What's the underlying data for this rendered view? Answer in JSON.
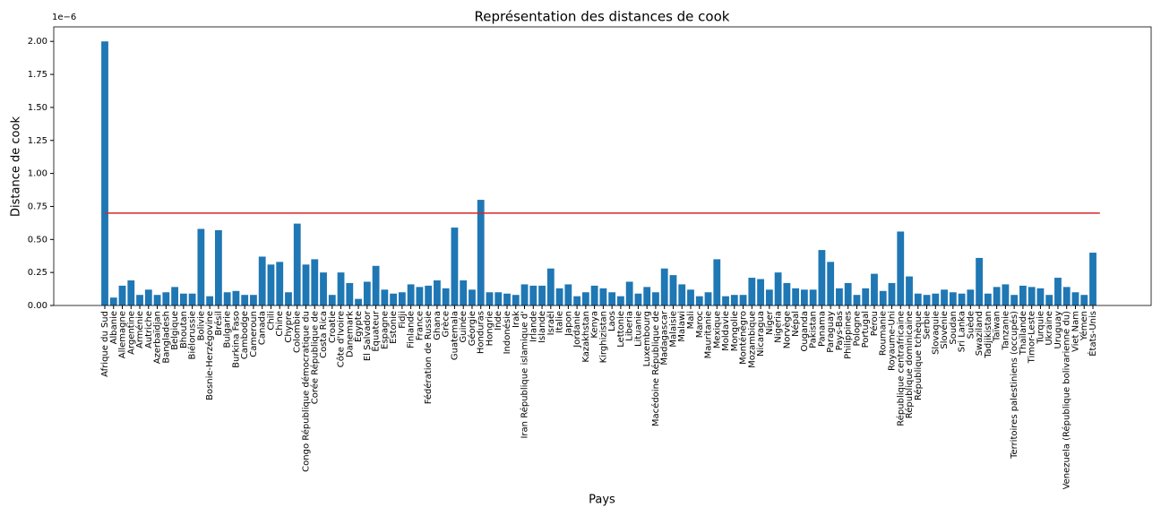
{
  "chart_data": {
    "type": "bar",
    "title": "Représentation des distances de cook",
    "x_label": "Pays",
    "y_label": "Distance de cook",
    "y_offset_label": "1e−6",
    "color": "#1f77b4",
    "threshold": 0.7,
    "threshold_color": "#d62728",
    "categories": [
      "Afrique du Sud",
      "Albanie",
      "Allemagne",
      "Argentine",
      "Arménie",
      "Autriche",
      "Azerbaïdjan",
      "Bangladesh",
      "Belgique",
      "Bhoutan",
      "Biélorussie",
      "Bolivie",
      "Bosnie-Herzégovine",
      "Brésil",
      "Bulgarie",
      "Burkina Faso",
      "Cambodge",
      "Cameroun",
      "Canada",
      "Chili",
      "Chine",
      "Chypre",
      "Colombie",
      "Congo République démocratique du",
      "Corée République de",
      "Costa Rica",
      "Croatie",
      "Côte d'Ivoire",
      "Danemark",
      "Égypte",
      "El Salvador",
      "Équateur",
      "Espagne",
      "Estonie",
      "Fidji",
      "Finlande",
      "France",
      "Fédération de Russie",
      "Ghana",
      "Grèce",
      "Guatemala",
      "Guinée",
      "Géorgie",
      "Honduras",
      "Hongrie",
      "Inde",
      "Indonésie",
      "Irak",
      "Iran République islamique d'",
      "Irlande",
      "Islande",
      "Israël",
      "Italie",
      "Japon",
      "Jordanie",
      "Kazakhstan",
      "Kenya",
      "Kirghizistan",
      "Laos",
      "Lettonie",
      "Liberia",
      "Lituanie",
      "Luxembourg",
      "Macédoine République de",
      "Madagascar",
      "Malaisie",
      "Malawi",
      "Mali",
      "Maroc",
      "Mauritanie",
      "Mexique",
      "Moldavie",
      "Mongolie",
      "Monténégro",
      "Mozambique",
      "Nicaragua",
      "Niger",
      "Nigeria",
      "Norvège",
      "Népal",
      "Ouganda",
      "Pakistan",
      "Panama",
      "Paraguay",
      "Pays-Bas",
      "Philippines",
      "Pologne",
      "Portugal",
      "Pérou",
      "Roumanie",
      "Royaume-Uni",
      "République centrafricaine",
      "République dominicaine",
      "République tchèque",
      "Serbie",
      "Slovaquie",
      "Slovénie",
      "Soudan",
      "Sri Lanka",
      "Suède",
      "Swaziland",
      "Tadjikistan",
      "Taïwan",
      "Tanzanie",
      "Territoires palestiniens (occupés)",
      "Thaïlande",
      "Timor-Leste",
      "Turquie",
      "Ukraine",
      "Uruguay",
      "Venezuela (République bolivarienne du)",
      "Viet Nam",
      "Yémen",
      "États-Unis"
    ],
    "values": [
      2.0,
      0.06,
      0.15,
      0.19,
      0.08,
      0.12,
      0.08,
      0.1,
      0.14,
      0.09,
      0.09,
      0.58,
      0.07,
      0.57,
      0.1,
      0.11,
      0.08,
      0.08,
      0.37,
      0.31,
      0.33,
      0.1,
      0.62,
      0.31,
      0.35,
      0.25,
      0.08,
      0.25,
      0.17,
      0.05,
      0.18,
      0.3,
      0.12,
      0.09,
      0.1,
      0.16,
      0.14,
      0.15,
      0.19,
      0.13,
      0.59,
      0.19,
      0.12,
      0.8,
      0.1,
      0.1,
      0.09,
      0.08,
      0.16,
      0.15,
      0.15,
      0.28,
      0.13,
      0.16,
      0.07,
      0.1,
      0.15,
      0.13,
      0.1,
      0.07,
      0.18,
      0.09,
      0.14,
      0.1,
      0.28,
      0.23,
      0.16,
      0.12,
      0.07,
      0.1,
      0.35,
      0.07,
      0.08,
      0.08,
      0.21,
      0.2,
      0.12,
      0.25,
      0.17,
      0.13,
      0.12,
      0.12,
      0.42,
      0.33,
      0.13,
      0.17,
      0.08,
      0.13,
      0.24,
      0.11,
      0.17,
      0.56,
      0.22,
      0.09,
      0.08,
      0.09,
      0.12,
      0.1,
      0.09,
      0.12,
      0.36,
      0.09,
      0.14,
      0.16,
      0.08,
      0.15,
      0.14,
      0.13,
      0.08,
      0.21,
      0.14,
      0.1,
      0.08,
      0.4
    ],
    "ylim": [
      0,
      2.11
    ],
    "yticks": [
      {
        "value": 0,
        "label": "0.00"
      },
      {
        "value": 0.25,
        "label": "0.25"
      },
      {
        "value": 0.5,
        "label": "0.50"
      },
      {
        "value": 0.75,
        "label": "0.75"
      },
      {
        "value": 1,
        "label": "1.00"
      },
      {
        "value": 1.25,
        "label": "1.25"
      },
      {
        "value": 1.5,
        "label": "1.50"
      },
      {
        "value": 1.75,
        "label": "1.75"
      },
      {
        "value": 2,
        "label": "2.00"
      }
    ]
  }
}
